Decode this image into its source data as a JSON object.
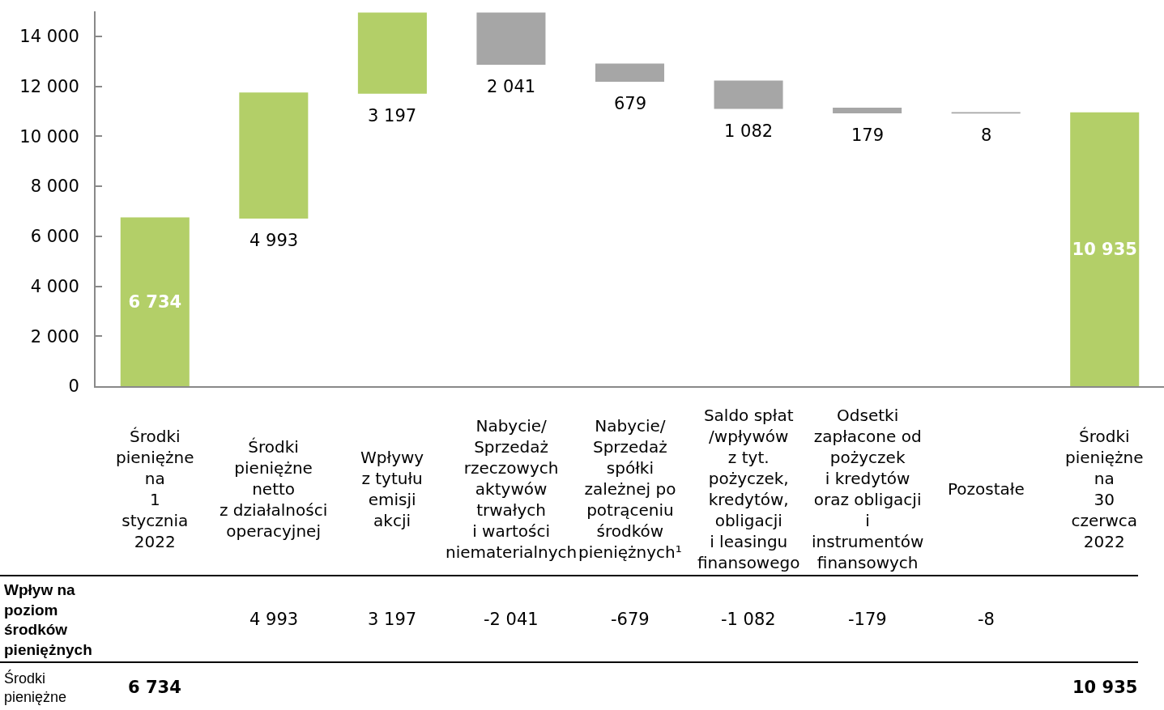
{
  "chart_data": {
    "type": "bar",
    "categories": [
      "Środki\npieniężne\nna\n1\nstycznia\n2022",
      "Środki\npieniężne\nnetto\nz działalności\noperacyjnej",
      "Wpływy\nz tytułu\nemisji\nakcji",
      "Nabycie/\nSprzedaż\nrzeczowych\naktywów\ntrwałych\ni wartości\nniematerialnych",
      "Nabycie/\nSprzedaż\nspółki\nzależnej po\npotrąceniu\nśrodków\npieniężnych¹",
      "Saldo spłat\n/wpływów\nz tyt.\npożyczek,\nkredytów,\nobligacji\ni leasingu\nfinansowego",
      "Odsetki\nzapłacone od\npożyczek\ni kredytów\noraz obligacji\ni\ninstrumentów\nfinansowych",
      "Pozostałe",
      "Środki\npieniężne\nna\n30\nczerwca\n2022"
    ],
    "values": [
      6734,
      4993,
      3197,
      -2041,
      -679,
      -1082,
      -179,
      -8,
      10935
    ],
    "base": [
      0,
      6734,
      11727,
      14924,
      12883,
      12204,
      11122,
      10943,
      0
    ],
    "colors": [
      "#b3cf68",
      "#b3cf68",
      "#b3cf68",
      "#a6a6a6",
      "#a6a6a6",
      "#a6a6a6",
      "#a6a6a6",
      "#a6a6a6",
      "#b3cf68"
    ],
    "value_labels": [
      "6 734",
      "4 993",
      "3 197",
      "2 041",
      "679",
      "1 082",
      "179",
      "8",
      "10 935"
    ],
    "ylim": [
      0,
      15000
    ],
    "yticks": [
      0,
      {
        "value": 2000,
        "label": "2 000"
      },
      {
        "value": 4000,
        "label": "4 000"
      },
      {
        "value": 6000,
        "label": "6 000"
      },
      {
        "value": 8000,
        "label": "8 000"
      },
      {
        "value": 10000,
        "label": "10 000"
      },
      {
        "value": 12000,
        "label": "12 000"
      },
      {
        "value": 14000,
        "label": "14 000"
      }
    ],
    "annotations": [
      "Wpływ na\npoziom\nśrodków\npieniężnych",
      "4 993",
      "3 197",
      "-2 041",
      "-679",
      "-1 082",
      "-179",
      "-8",
      "Środki\npieniężne",
      "6 734",
      "10 935"
    ]
  }
}
